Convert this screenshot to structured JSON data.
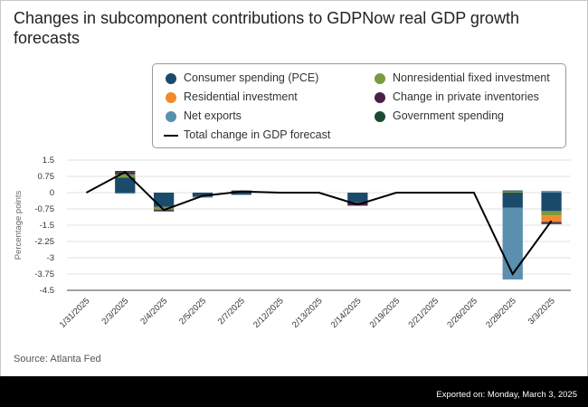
{
  "title": "Changes in subcomponent contributions to GDPNow real GDP growth forecasts",
  "source": "Source: Atlanta Fed",
  "footer": "Exported on: Monday, March 3, 2025",
  "legend_items": [
    {
      "label": "Consumer spending (PCE)",
      "color": "#1b4b6b",
      "kind": "dot"
    },
    {
      "label": "Nonresidential fixed investment",
      "color": "#7a9a3e",
      "kind": "dot"
    },
    {
      "label": "Residential investment",
      "color": "#f08a2c",
      "kind": "dot"
    },
    {
      "label": "Change in private inventories",
      "color": "#4a1f4a",
      "kind": "dot"
    },
    {
      "label": "Net exports",
      "color": "#5a8fae",
      "kind": "dot"
    },
    {
      "label": "Government spending",
      "color": "#1d4a34",
      "kind": "dot"
    },
    {
      "label": "Total change in GDP forecast",
      "color": "#000000",
      "kind": "line"
    }
  ],
  "chart_data": {
    "type": "bar",
    "stacked": true,
    "title": "Changes in subcomponent contributions to GDPNow real GDP growth forecasts",
    "xlabel": "",
    "ylabel": "Percentage points",
    "ylim": [
      -4.5,
      1.5
    ],
    "yticks": [
      1.5,
      0.75,
      0,
      -0.75,
      -1.5,
      -2.25,
      -3,
      -3.75,
      -4.5
    ],
    "ytick_labels": [
      "1.5",
      "0.75",
      "0",
      "-0.75",
      "-1.5",
      "-2.25",
      "-3",
      "-3.75",
      "-4.5"
    ],
    "categories": [
      "1/31/2025",
      "2/3/2025",
      "2/4/2025",
      "2/5/2025",
      "2/7/2025",
      "2/12/2025",
      "2/13/2025",
      "2/14/2025",
      "2/19/2025",
      "2/21/2025",
      "2/26/2025",
      "2/28/2025",
      "3/3/2025"
    ],
    "series": [
      {
        "name": "Consumer spending (PCE)",
        "color": "#1b4b6b",
        "values": [
          0,
          0.7,
          -0.65,
          -0.15,
          -0.1,
          0,
          0,
          -0.45,
          0,
          0,
          0,
          -0.7,
          -0.85
        ]
      },
      {
        "name": "Nonresidential fixed investment",
        "color": "#7a9a3e",
        "values": [
          0,
          0.15,
          -0.1,
          0,
          0,
          0,
          0,
          0,
          0,
          0,
          0,
          0.08,
          -0.2
        ]
      },
      {
        "name": "Residential investment",
        "color": "#f08a2c",
        "values": [
          0,
          0,
          -0.03,
          0,
          0,
          0,
          0,
          0,
          0,
          0,
          0,
          0,
          -0.3
        ]
      },
      {
        "name": "Change in private inventories",
        "color": "#4a1f4a",
        "values": [
          0,
          0.1,
          -0.05,
          -0.03,
          0.08,
          0,
          0,
          -0.15,
          0,
          0,
          0,
          0,
          -0.05
        ]
      },
      {
        "name": "Net exports",
        "color": "#5a8fae",
        "values": [
          0,
          -0.05,
          0,
          -0.05,
          0,
          0,
          0,
          0,
          0,
          0,
          0,
          -3.3,
          0.08
        ]
      },
      {
        "name": "Government spending",
        "color": "#1d4a34",
        "values": [
          0,
          0.05,
          -0.02,
          0,
          0.02,
          0,
          0,
          0,
          0,
          0,
          0,
          0.02,
          -0.05
        ]
      }
    ],
    "line": {
      "name": "Total change in GDP forecast",
      "color": "#000000",
      "values": [
        0,
        0.95,
        -0.8,
        -0.15,
        0.05,
        0,
        0,
        -0.55,
        0,
        0,
        0,
        -3.75,
        -1.3
      ]
    },
    "grid": true,
    "legend_position": "top-right"
  }
}
